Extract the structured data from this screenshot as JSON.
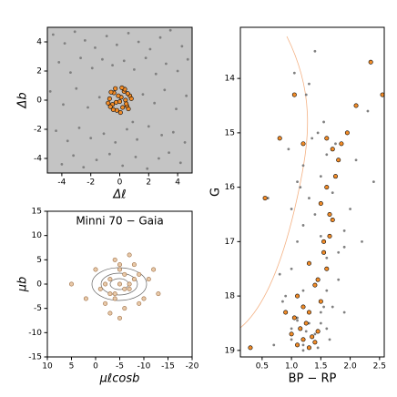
{
  "chart_data": [
    {
      "type": "scatter",
      "xlabel": "Δℓ",
      "ylabel": "Δb",
      "xlim": [
        -5,
        5
      ],
      "ylim": [
        -5,
        5
      ],
      "xticks": [
        -4,
        -2,
        0,
        2,
        4
      ],
      "yticks": [
        -4,
        -2,
        0,
        2,
        4
      ],
      "series": [
        {
          "color": "#808080",
          "x": [
            -4.6,
            -3.8,
            -3.1,
            -2.4,
            -1.7,
            -0.9,
            -0.2,
            0.6,
            1.3,
            2.1,
            2.8,
            3.5,
            4.3,
            -4.2,
            -3.4,
            -2.7,
            -1.9,
            -1.2,
            -0.5,
            0.3,
            1.0,
            1.8,
            2.5,
            3.2,
            4.0,
            4.7,
            -4.8,
            -3.9,
            -3.0,
            -2.2,
            -1.4,
            0.9,
            1.6,
            2.4,
            3.1,
            3.9,
            4.6,
            -4.4,
            -3.6,
            -2.8,
            -2.0,
            -1.1,
            -0.3,
            0.5,
            1.2,
            2.0,
            2.9,
            3.7,
            4.5,
            -4.0,
            -3.2,
            -2.5,
            -1.6,
            -0.7,
            0.2,
            1.1,
            1.9,
            2.7,
            3.4,
            4.2
          ],
          "y": [
            4.5,
            3.9,
            4.7,
            4.1,
            3.6,
            4.4,
            3.8,
            4.6,
            4.0,
            3.5,
            4.3,
            4.8,
            3.7,
            2.6,
            1.9,
            2.9,
            2.2,
            2.8,
            2.4,
            2.7,
            2.1,
            2.9,
            1.8,
            2.5,
            2.0,
            2.8,
            0.6,
            -0.3,
            0.8,
            -0.5,
            0.2,
            -1.5,
            0.4,
            -0.2,
            0.7,
            -0.6,
            0.3,
            -2.1,
            -2.8,
            -1.9,
            -2.6,
            -2.3,
            -2.9,
            -2.0,
            -2.7,
            -1.8,
            -2.4,
            -2.2,
            -2.9,
            -4.4,
            -3.8,
            -4.6,
            -4.1,
            -3.7,
            -4.5,
            -3.9,
            -4.7,
            -4.0,
            -3.6,
            -4.3
          ]
        },
        {
          "color": "#f28c28",
          "edgecolor": "#000000",
          "x": [
            0.1,
            -0.4,
            0.5,
            -0.7,
            0.3,
            -0.2,
            0.7,
            -0.5,
            0.0,
            0.4,
            -0.8,
            0.6,
            -0.3,
            0.2,
            -0.6,
            0.8,
            -0.1,
            0.35,
            -0.45,
            0.15,
            -0.25,
            0.55,
            -0.65,
            0.05,
            0.45
          ],
          "y": [
            0.2,
            0.5,
            -0.4,
            0.1,
            0.6,
            -0.7,
            0.3,
            -0.3,
            -0.1,
            0.0,
            -0.2,
            -0.6,
            0.8,
            -0.5,
            0.55,
            0.1,
            0.3,
            0.75,
            -0.65,
            0.85,
            -0.15,
            0.45,
            -0.45,
            -0.85,
            -0.25
          ]
        }
      ]
    },
    {
      "type": "scatter",
      "title": "Minni 70  −  Gaia",
      "xlabel": "μℓcosb",
      "ylabel": "μb",
      "xlim": [
        10,
        -20
      ],
      "ylim": [
        -15,
        15
      ],
      "xticks": [
        10,
        5,
        0,
        -5,
        -10,
        -15,
        -20
      ],
      "yticks": [
        -15,
        -10,
        -5,
        0,
        5,
        10,
        15
      ],
      "series": [
        {
          "color": "#e8c9a8",
          "edgecolor": "#9a6a40",
          "x": [
            -5,
            -3,
            -7,
            -4,
            -6,
            -2,
            -8,
            -5,
            -4,
            -6,
            -3,
            -7,
            -9,
            -1,
            -5,
            -10,
            0,
            -11,
            -4,
            -6,
            -2,
            -8,
            5,
            -13,
            -3,
            -7,
            -5,
            -12,
            2,
            -9
          ],
          "y": [
            0,
            1,
            -1,
            -2,
            2,
            0,
            1,
            3,
            -3,
            -1,
            -2,
            0,
            2,
            -1,
            4,
            -3,
            3,
            1,
            5,
            -5,
            -4,
            4,
            0,
            -2,
            -6,
            6,
            -7,
            3,
            -3,
            -4
          ]
        }
      ]
    },
    {
      "type": "scatter",
      "xlabel": "BP − RP",
      "ylabel": "G",
      "xlim": [
        0.13,
        2.58
      ],
      "ylim": [
        19.12,
        13.06
      ],
      "xticks": [
        0.5,
        {
          "value": 1,
          "label": "1.0"
        },
        1.5,
        {
          "value": 2,
          "label": "2.0"
        },
        2.5
      ],
      "yticks": [
        14,
        15,
        16,
        17,
        18,
        19
      ],
      "series": [
        {
          "color": "#808080",
          "x": [
            1.0,
            1.2,
            1.4,
            1.6,
            1.1,
            1.3,
            1.5,
            1.7,
            0.9,
            1.2,
            1.4,
            1.8,
            1.0,
            1.3,
            1.6,
            1.9,
            1.1,
            1.5,
            1.2,
            1.4,
            1.0,
            1.3,
            1.7,
            1.1,
            1.5,
            1.2,
            1.6,
            0.95,
            1.35,
            1.45,
            0.8,
            1.9,
            2.1,
            2.3,
            0.6,
            1.25,
            1.55,
            1.05,
            1.75,
            1.15,
            1.8,
            2.0,
            1.6,
            1.9,
            1.7,
            2.2,
            1.5,
            1.4,
            2.4,
            1.3,
            0.7,
            1.0,
            1.2,
            1.45,
            1.65,
            0.85,
            1.1,
            1.35,
            1.55,
            1.25
          ],
          "y": [
            18.8,
            18.9,
            18.7,
            18.6,
            18.4,
            18.5,
            18.3,
            18.2,
            18.0,
            17.9,
            17.8,
            17.7,
            17.5,
            17.4,
            17.3,
            17.1,
            17.0,
            16.9,
            16.7,
            16.5,
            16.4,
            16.2,
            16.1,
            15.9,
            15.8,
            15.6,
            15.4,
            15.3,
            15.1,
            15.0,
            17.6,
            16.8,
            15.5,
            14.6,
            16.2,
            14.3,
            14.8,
            13.9,
            15.2,
            16.0,
            17.2,
            16.4,
            17.9,
            18.3,
            16.6,
            17.0,
            18.5,
            13.5,
            15.9,
            14.1,
            18.9,
            18.6,
            19.0,
            18.95,
            18.8,
            18.1,
            18.45,
            18.75,
            18.2,
            18.65
          ]
        },
        {
          "color": "#f28c28",
          "edgecolor": "#000000",
          "x": [
            1.1,
            1.2,
            1.3,
            1.0,
            1.4,
            1.15,
            1.25,
            1.35,
            1.05,
            1.45,
            1.2,
            1.3,
            1.1,
            1.5,
            1.4,
            1.6,
            1.55,
            1.65,
            1.7,
            1.5,
            1.6,
            1.75,
            1.8,
            1.7,
            1.6,
            1.65,
            1.55,
            1.85,
            1.45,
            1.3,
            0.3,
            0.9,
            2.35,
            2.55,
            0.55,
            1.05,
            2.1,
            0.8,
            1.95,
            1.2
          ],
          "y": [
            18.9,
            18.8,
            18.95,
            18.7,
            18.85,
            18.6,
            18.5,
            18.75,
            18.4,
            18.65,
            18.2,
            18.3,
            18.0,
            18.1,
            17.8,
            17.5,
            17.2,
            16.9,
            16.6,
            16.3,
            16.0,
            15.8,
            15.5,
            15.3,
            15.1,
            16.5,
            17.0,
            15.2,
            17.7,
            17.4,
            18.95,
            18.3,
            13.7,
            14.3,
            16.2,
            14.3,
            14.5,
            15.1,
            15.0,
            15.2
          ]
        }
      ]
    }
  ]
}
